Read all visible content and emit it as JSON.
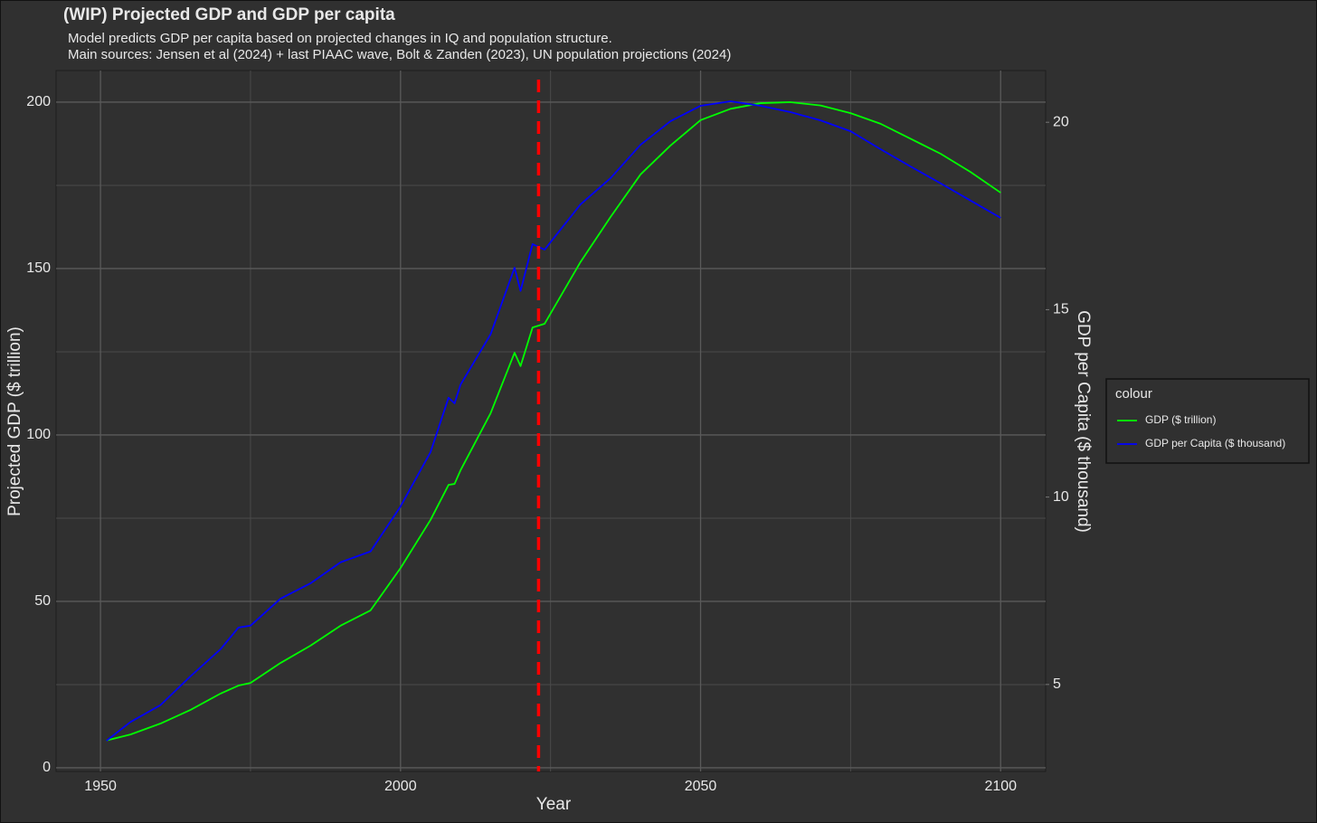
{
  "chart_data": {
    "type": "line",
    "title": "(WIP) Projected GDP and GDP per capita",
    "subtitle": [
      "Model predicts GDP per capita based on projected changes in IQ and population structure.",
      "Main sources: Jensen et al (2024) + last PIAAC wave, Bolt & Zanden (2023), UN population projections (2024)"
    ],
    "x_label": "Year",
    "y_label": "Projected GDP ($ trillion)",
    "y2_label": "GDP per Capita ($ thousand)",
    "legend_title": "colour",
    "legend": "right",
    "x": [
      1951,
      1955,
      1960,
      1965,
      1970,
      1973,
      1975,
      1980,
      1985,
      1990,
      1995,
      2000,
      2005,
      2008,
      2009,
      2010,
      2015,
      2019,
      2020,
      2022,
      2024,
      2030,
      2035,
      2040,
      2045,
      2050,
      2055,
      2060,
      2065,
      2070,
      2075,
      2080,
      2085,
      2090,
      2095,
      2100
    ],
    "series": [
      {
        "name": "GDP ($ trillion)",
        "color": "#00ff00",
        "values": [
          8.2,
          10,
          13.3,
          17.4,
          22.3,
          24.7,
          25.5,
          31.5,
          36.7,
          42.7,
          47.3,
          60,
          74.5,
          85,
          85.3,
          89.4,
          106.5,
          124.7,
          120.7,
          132.3,
          133.4,
          152,
          165.5,
          178.3,
          187,
          194.6,
          198,
          199.7,
          200,
          199,
          196.7,
          193.5,
          189,
          184.5,
          179,
          172.8
        ]
      },
      {
        "name": "GDP per Capita ($ thousand)",
        "color": "#0000ff",
        "axis": "y2",
        "values": [
          3.5,
          4.0,
          4.45,
          5.22,
          5.94,
          6.52,
          6.57,
          7.29,
          7.7,
          8.26,
          8.55,
          9.75,
          11.2,
          12.65,
          12.5,
          13.0,
          14.34,
          16.12,
          15.5,
          16.75,
          16.6,
          17.81,
          18.51,
          19.4,
          20.03,
          20.44,
          20.56,
          20.44,
          20.27,
          20.05,
          19.76,
          19.28,
          18.82,
          18.37,
          17.91,
          17.45
        ]
      }
    ],
    "xlim": [
      1942.6,
      2107.5
    ],
    "xticks": [
      1950,
      2000,
      2050,
      2100
    ],
    "x_minor_ticks": [
      1975,
      2025,
      2075
    ],
    "ylim": [
      -1.1,
      209.5
    ],
    "yticks": [
      0,
      50,
      100,
      150,
      200
    ],
    "y_minor_ticks": [
      25,
      75,
      125,
      175
    ],
    "y2lim": [
      2.68,
      21.38
    ],
    "y2ticks": [
      5,
      10,
      15,
      20
    ],
    "vline": {
      "x": 2023,
      "color": "#ff0000"
    },
    "grid": true
  }
}
